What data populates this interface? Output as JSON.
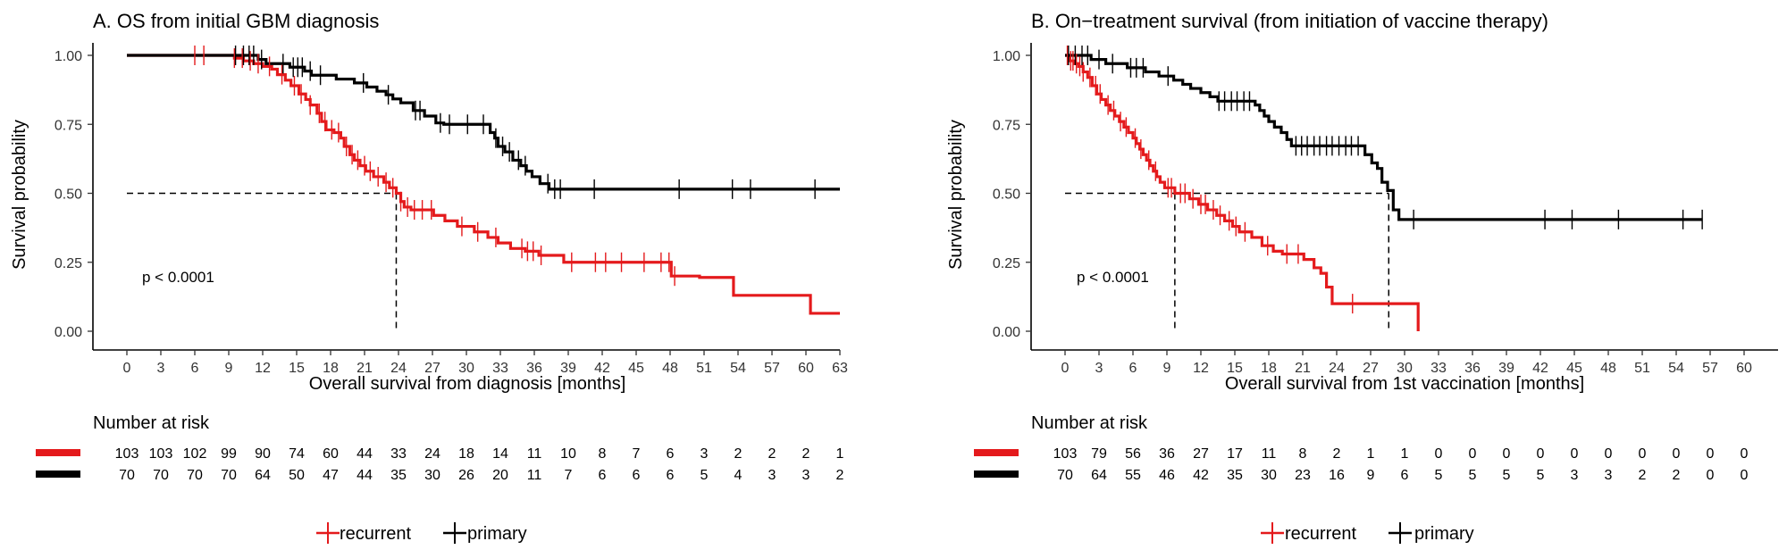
{
  "chart_data": [
    {
      "type": "line",
      "subtype": "kaplan-meier",
      "title": "A. OS from initial GBM diagnosis",
      "xlabel": "Overall survival from diagnosis [months]",
      "ylabel": "Survival probability",
      "xlim": [
        0,
        63
      ],
      "ylim": [
        0,
        1
      ],
      "xticks": [
        0,
        3,
        6,
        9,
        12,
        15,
        18,
        21,
        24,
        27,
        30,
        33,
        36,
        39,
        42,
        45,
        48,
        51,
        54,
        57,
        60,
        63
      ],
      "yticks": [
        "0.00",
        "0.25",
        "0.50",
        "0.75",
        "1.00"
      ],
      "pvalue": "p < 0.0001",
      "median_line": {
        "y": 0.5,
        "x_end": 23.8,
        "drops": [
          23.8
        ]
      },
      "series": [
        {
          "name": "recurrent",
          "color": "#e41a1c",
          "steps": [
            [
              0,
              1.0
            ],
            [
              9.5,
              0.99
            ],
            [
              10.3,
              0.98
            ],
            [
              11.2,
              0.97
            ],
            [
              12,
              0.96
            ],
            [
              12.8,
              0.95
            ],
            [
              13.3,
              0.93
            ],
            [
              14,
              0.91
            ],
            [
              14.5,
              0.89
            ],
            [
              15.2,
              0.86
            ],
            [
              15.8,
              0.84
            ],
            [
              16.2,
              0.82
            ],
            [
              16.8,
              0.79
            ],
            [
              17.2,
              0.76
            ],
            [
              17.6,
              0.73
            ],
            [
              18.3,
              0.72
            ],
            [
              18.9,
              0.7
            ],
            [
              19.2,
              0.67
            ],
            [
              19.7,
              0.64
            ],
            [
              20.1,
              0.62
            ],
            [
              20.6,
              0.6
            ],
            [
              21.1,
              0.58
            ],
            [
              21.8,
              0.56
            ],
            [
              22.7,
              0.54
            ],
            [
              23.2,
              0.52
            ],
            [
              23.8,
              0.5
            ],
            [
              24.2,
              0.47
            ],
            [
              24.5,
              0.45
            ],
            [
              25.1,
              0.44
            ],
            [
              27.1,
              0.42
            ],
            [
              28.1,
              0.4
            ],
            [
              29.2,
              0.38
            ],
            [
              30.7,
              0.36
            ],
            [
              31.9,
              0.34
            ],
            [
              32.8,
              0.32
            ],
            [
              33.9,
              0.3
            ],
            [
              35.2,
              0.29
            ],
            [
              36.4,
              0.275
            ],
            [
              38.6,
              0.25
            ],
            [
              48.1,
              0.2
            ],
            [
              50.6,
              0.195
            ],
            [
              53.6,
              0.13
            ],
            [
              60.4,
              0.065
            ],
            [
              63,
              0.065
            ]
          ],
          "censor_times": [
            6,
            6.8,
            9.5,
            10.2,
            10.9,
            11.6,
            12.6,
            13.7,
            14.8,
            15.4,
            16.2,
            17,
            17.5,
            18.1,
            18.7,
            19.4,
            19.9,
            20.4,
            21,
            21.5,
            22.2,
            22.9,
            23.5,
            24.2,
            24.8,
            25.4,
            26.1,
            26.9,
            29.6,
            31,
            32.6,
            34.9,
            35.4,
            35.9,
            36.6,
            39.3,
            41.4,
            42.3,
            43.7,
            45.7,
            47.2,
            47.9,
            48.4
          ],
          "at_risk": [
            103,
            103,
            102,
            99,
            90,
            74,
            60,
            44,
            33,
            24,
            18,
            14,
            11,
            10,
            8,
            7,
            6,
            3,
            2,
            2,
            2,
            1
          ]
        },
        {
          "name": "primary",
          "color": "#000000",
          "steps": [
            [
              0,
              1.0
            ],
            [
              11.6,
              0.985
            ],
            [
              12.3,
              0.97
            ],
            [
              14.4,
              0.957
            ],
            [
              15.7,
              0.943
            ],
            [
              16.3,
              0.928
            ],
            [
              18.5,
              0.914
            ],
            [
              20.1,
              0.9
            ],
            [
              21.2,
              0.885
            ],
            [
              22.1,
              0.87
            ],
            [
              22.9,
              0.857
            ],
            [
              23.5,
              0.842
            ],
            [
              24.2,
              0.828
            ],
            [
              25.3,
              0.8
            ],
            [
              26.3,
              0.78
            ],
            [
              27.3,
              0.755
            ],
            [
              28,
              0.75
            ],
            [
              32.1,
              0.72
            ],
            [
              32.5,
              0.7
            ],
            [
              32.8,
              0.67
            ],
            [
              33.4,
              0.65
            ],
            [
              34.1,
              0.62
            ],
            [
              34.8,
              0.6
            ],
            [
              35.3,
              0.58
            ],
            [
              35.8,
              0.56
            ],
            [
              36.5,
              0.535
            ],
            [
              37.3,
              0.515
            ],
            [
              63,
              0.515
            ]
          ],
          "censor_times": [
            9.6,
            10.3,
            10.8,
            11.2,
            11.9,
            13.8,
            14.7,
            15.1,
            15.5,
            16.2,
            17.1,
            20.9,
            23.1,
            25.5,
            25.9,
            27.7,
            28.5,
            30.1,
            31.5,
            32.6,
            33.2,
            33.8,
            34.6,
            35.2,
            37.2,
            37.8,
            38.3,
            41.3,
            48.8,
            53.5,
            55.1,
            60.8
          ]
        }
      ],
      "at_risk_ticks": [
        0,
        3,
        6,
        9,
        12,
        15,
        18,
        21,
        24,
        27,
        30,
        33,
        36,
        39,
        42,
        45,
        48,
        51,
        54,
        57,
        60,
        63
      ]
    },
    {
      "type": "line",
      "subtype": "kaplan-meier",
      "title": "B. On−treatment survival (from initiation of vaccine therapy)",
      "xlabel": "Overall survival from 1st vaccination [months]",
      "ylabel": "Survival probability",
      "xlim": [
        0,
        60
      ],
      "ylim": [
        0,
        1
      ],
      "xticks": [
        0,
        3,
        6,
        9,
        12,
        15,
        18,
        21,
        24,
        27,
        30,
        33,
        36,
        39,
        42,
        45,
        48,
        51,
        54,
        57,
        60
      ],
      "yticks": [
        "0.00",
        "0.25",
        "0.50",
        "0.75",
        "1.00"
      ],
      "pvalue": "p < 0.0001",
      "median_line": {
        "y": 0.5,
        "x_end": 28.6,
        "drops": [
          9.7,
          28.6
        ]
      },
      "series": [
        {
          "name": "recurrent",
          "color": "#e41a1c",
          "steps": [
            [
              0,
              1.0
            ],
            [
              0.4,
              0.98
            ],
            [
              0.8,
              0.97
            ],
            [
              1.2,
              0.96
            ],
            [
              1.6,
              0.94
            ],
            [
              2,
              0.92
            ],
            [
              2.4,
              0.89
            ],
            [
              2.8,
              0.86
            ],
            [
              3.2,
              0.84
            ],
            [
              3.6,
              0.82
            ],
            [
              4,
              0.8
            ],
            [
              4.4,
              0.78
            ],
            [
              4.8,
              0.76
            ],
            [
              5.2,
              0.74
            ],
            [
              5.6,
              0.72
            ],
            [
              6,
              0.7
            ],
            [
              6.3,
              0.68
            ],
            [
              6.6,
              0.66
            ],
            [
              6.9,
              0.64
            ],
            [
              7.2,
              0.62
            ],
            [
              7.5,
              0.6
            ],
            [
              7.8,
              0.58
            ],
            [
              8.1,
              0.56
            ],
            [
              8.4,
              0.54
            ],
            [
              8.8,
              0.52
            ],
            [
              9.7,
              0.5
            ],
            [
              11,
              0.48
            ],
            [
              11.8,
              0.46
            ],
            [
              12.6,
              0.44
            ],
            [
              13.4,
              0.42
            ],
            [
              14.1,
              0.4
            ],
            [
              14.8,
              0.38
            ],
            [
              15.4,
              0.36
            ],
            [
              16.5,
              0.34
            ],
            [
              17.4,
              0.31
            ],
            [
              18.4,
              0.29
            ],
            [
              19.2,
              0.28
            ],
            [
              21.1,
              0.26
            ],
            [
              22,
              0.23
            ],
            [
              22.6,
              0.21
            ],
            [
              23.1,
              0.16
            ],
            [
              23.6,
              0.1
            ],
            [
              31.2,
              0.1
            ],
            [
              31.2,
              0.0
            ]
          ],
          "censor_times": [
            0.2,
            0.5,
            0.7,
            1,
            1.3,
            1.6,
            2.2,
            2.7,
            3.1,
            3.8,
            4.3,
            4.9,
            5.4,
            6.2,
            6.7,
            7.4,
            8,
            9.1,
            9.4,
            10.2,
            10.6,
            11.3,
            12,
            12.4,
            13.1,
            13.7,
            14.5,
            15.1,
            15.9,
            17.9,
            19.6,
            20.6,
            25.4
          ],
          "at_risk": [
            103,
            79,
            56,
            36,
            27,
            17,
            11,
            8,
            2,
            1,
            1,
            0,
            0,
            0,
            0,
            0,
            0,
            0,
            0,
            0,
            0
          ]
        },
        {
          "name": "primary",
          "color": "#000000",
          "steps": [
            [
              0,
              1.0
            ],
            [
              2.3,
              0.985
            ],
            [
              3.6,
              0.97
            ],
            [
              5.5,
              0.955
            ],
            [
              7.1,
              0.94
            ],
            [
              8.3,
              0.925
            ],
            [
              9.6,
              0.91
            ],
            [
              10.4,
              0.895
            ],
            [
              11.1,
              0.88
            ],
            [
              12,
              0.865
            ],
            [
              12.8,
              0.85
            ],
            [
              13.5,
              0.834
            ],
            [
              16.8,
              0.82
            ],
            [
              17.2,
              0.8
            ],
            [
              17.6,
              0.78
            ],
            [
              18,
              0.76
            ],
            [
              18.5,
              0.74
            ],
            [
              19.1,
              0.72
            ],
            [
              19.6,
              0.695
            ],
            [
              20,
              0.672
            ],
            [
              26.5,
              0.64
            ],
            [
              27.1,
              0.61
            ],
            [
              27.6,
              0.59
            ],
            [
              28,
              0.54
            ],
            [
              28.5,
              0.51
            ],
            [
              29,
              0.44
            ],
            [
              29.5,
              0.405
            ],
            [
              56.3,
              0.405
            ]
          ],
          "censor_times": [
            0.3,
            0.9,
            1.5,
            2,
            3,
            4.2,
            5.8,
            6.3,
            6.9,
            9.1,
            13.6,
            14.1,
            14.7,
            15.2,
            15.8,
            16.3,
            20.4,
            20.9,
            21.4,
            22,
            22.5,
            23.1,
            23.6,
            24.2,
            24.8,
            25.3,
            25.9,
            30.8,
            42.4,
            44.8,
            48.9,
            54.6,
            56.3
          ]
        }
      ],
      "at_risk_ticks": [
        0,
        3,
        6,
        9,
        12,
        15,
        18,
        21,
        24,
        27,
        30,
        33,
        36,
        39,
        42,
        45,
        48,
        51,
        54,
        57,
        60
      ]
    }
  ],
  "risk_tables": [
    {
      "title": "Number at risk",
      "rows": [
        {
          "name": "recurrent",
          "color": "#e41a1c",
          "values": [
            "103",
            "103",
            "102",
            "99",
            "90",
            "74",
            "60",
            "44",
            "33",
            "24",
            "18",
            "14",
            "11",
            "10",
            "8",
            "7",
            "6",
            "3",
            "2",
            "2",
            "2",
            "1"
          ]
        },
        {
          "name": "primary",
          "color": "#000000",
          "values": [
            "70",
            "70",
            "70",
            "70",
            "64",
            "50",
            "47",
            "44",
            "35",
            "30",
            "26",
            "20",
            "11",
            "7",
            "6",
            "6",
            "6",
            "5",
            "4",
            "3",
            "3",
            "2"
          ]
        }
      ]
    },
    {
      "title": "Number at risk",
      "rows": [
        {
          "name": "recurrent",
          "color": "#e41a1c",
          "values": [
            "103",
            "79",
            "56",
            "36",
            "27",
            "17",
            "11",
            "8",
            "2",
            "1",
            "1",
            "0",
            "0",
            "0",
            "0",
            "0",
            "0",
            "0",
            "0",
            "0",
            "0"
          ]
        },
        {
          "name": "primary",
          "color": "#000000",
          "values": [
            "70",
            "64",
            "55",
            "46",
            "42",
            "35",
            "30",
            "23",
            "16",
            "9",
            "6",
            "5",
            "5",
            "5",
            "5",
            "3",
            "3",
            "2",
            "2",
            "0",
            "0"
          ]
        }
      ]
    }
  ],
  "legend": {
    "items": [
      {
        "label": "recurrent",
        "color": "#e41a1c"
      },
      {
        "label": "primary",
        "color": "#000000"
      }
    ]
  }
}
